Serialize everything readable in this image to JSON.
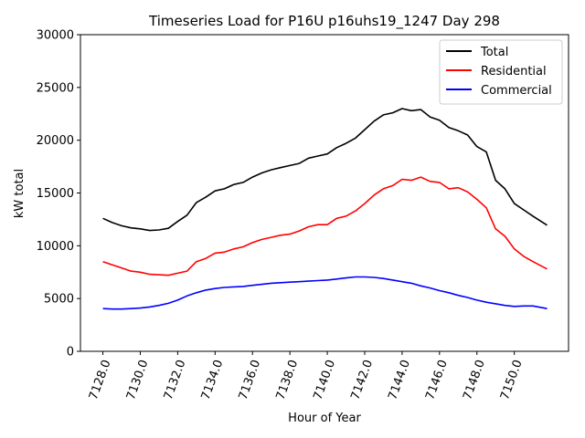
{
  "chart_data": {
    "type": "line",
    "title": "Timeseries Load for P16U p16uhs19_1247  Day 298",
    "xlabel": "Hour of Year",
    "ylabel": "kW total",
    "xlim": [
      7126.8,
      7152.9
    ],
    "ylim": [
      0,
      30000
    ],
    "xticks": [
      7128,
      7130,
      7132,
      7134,
      7136,
      7138,
      7140,
      7142,
      7144,
      7146,
      7148,
      7150
    ],
    "xtick_labels": [
      "7128.0",
      "7130.0",
      "7132.0",
      "7134.0",
      "7136.0",
      "7138.0",
      "7140.0",
      "7142.0",
      "7144.0",
      "7146.0",
      "7148.0",
      "7150.0"
    ],
    "yticks": [
      0,
      5000,
      10000,
      15000,
      20000,
      25000,
      30000
    ],
    "ytick_labels": [
      "0",
      "5000",
      "10000",
      "15000",
      "20000",
      "25000",
      "30000"
    ],
    "grid": false,
    "legend_position": "top-right",
    "x": [
      7128.0,
      7128.5,
      7129.0,
      7129.5,
      7130.0,
      7130.5,
      7131.0,
      7131.5,
      7132.0,
      7132.5,
      7133.0,
      7133.5,
      7134.0,
      7134.5,
      7135.0,
      7135.5,
      7136.0,
      7136.5,
      7137.0,
      7137.5,
      7138.0,
      7138.5,
      7139.0,
      7139.5,
      7140.0,
      7140.5,
      7141.0,
      7141.5,
      7142.0,
      7142.5,
      7143.0,
      7143.5,
      7144.0,
      7144.5,
      7145.0,
      7145.5,
      7146.0,
      7146.5,
      7147.0,
      7147.5,
      7148.0,
      7148.5,
      7149.0,
      7149.5,
      7150.0,
      7150.5,
      7151.0,
      7151.75
    ],
    "series": [
      {
        "name": "Total",
        "color": "#000000",
        "values": [
          12600,
          12200,
          11900,
          11700,
          11600,
          11450,
          11500,
          11650,
          12300,
          12900,
          14100,
          14600,
          15200,
          15400,
          15800,
          16000,
          16500,
          16900,
          17200,
          17400,
          17600,
          17800,
          18300,
          18500,
          18700,
          19300,
          19700,
          20200,
          21000,
          21800,
          22400,
          22600,
          23000,
          22800,
          22900,
          22200,
          21900,
          21200,
          20900,
          20500,
          19400,
          18900,
          16200,
          15400,
          14000,
          13400,
          12800,
          11950
        ]
      },
      {
        "name": "Residential",
        "color": "#ff0000",
        "values": [
          8500,
          8200,
          7900,
          7600,
          7500,
          7300,
          7250,
          7200,
          7400,
          7600,
          8500,
          8800,
          9300,
          9400,
          9700,
          9900,
          10300,
          10600,
          10800,
          11000,
          11100,
          11400,
          11800,
          12000,
          12000,
          12600,
          12800,
          13300,
          14000,
          14800,
          15400,
          15700,
          16300,
          16200,
          16500,
          16100,
          16000,
          15400,
          15500,
          15100,
          14400,
          13600,
          11600,
          10900,
          9700,
          9000,
          8500,
          7800
        ]
      },
      {
        "name": "Commercial",
        "color": "#0000ff",
        "values": [
          4050,
          4000,
          4000,
          4050,
          4100,
          4200,
          4350,
          4550,
          4850,
          5250,
          5550,
          5800,
          5950,
          6050,
          6100,
          6150,
          6250,
          6350,
          6450,
          6500,
          6550,
          6600,
          6650,
          6700,
          6750,
          6850,
          6950,
          7050,
          7050,
          7000,
          6900,
          6750,
          6600,
          6450,
          6200,
          6000,
          5750,
          5550,
          5300,
          5100,
          4850,
          4650,
          4500,
          4350,
          4250,
          4300,
          4300,
          4050
        ]
      }
    ]
  }
}
